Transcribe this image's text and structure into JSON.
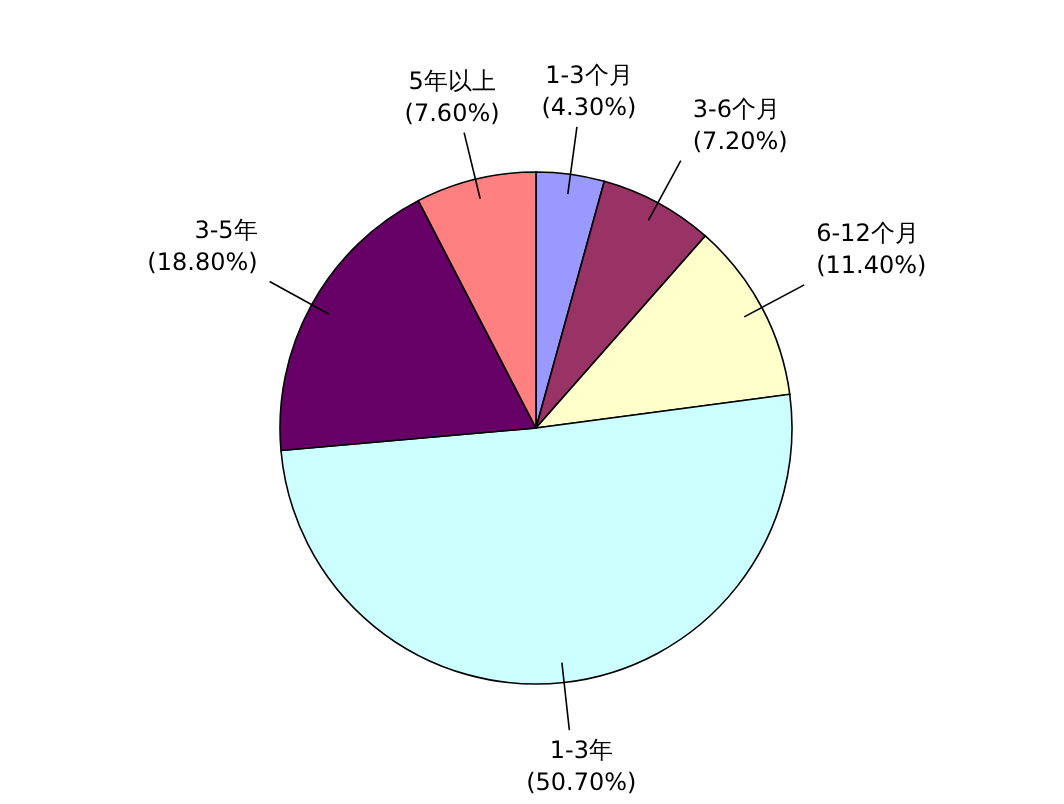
{
  "chart_data": {
    "type": "pie",
    "categories": [
      "1-3个月",
      "3-6个月",
      "6-12个月",
      "1-3年",
      "3-5年",
      "5年以上"
    ],
    "values": [
      4.3,
      7.2,
      11.4,
      50.7,
      18.8,
      7.6
    ],
    "value_labels": [
      "(4.30%)",
      "(7.20%)",
      "(11.40%)",
      "(50.70%)",
      "(18.80%)",
      "(7.60%)"
    ],
    "colors": [
      "#9999ff",
      "#993366",
      "#ffffcc",
      "#ccffff",
      "#660066",
      "#ff8080"
    ]
  }
}
